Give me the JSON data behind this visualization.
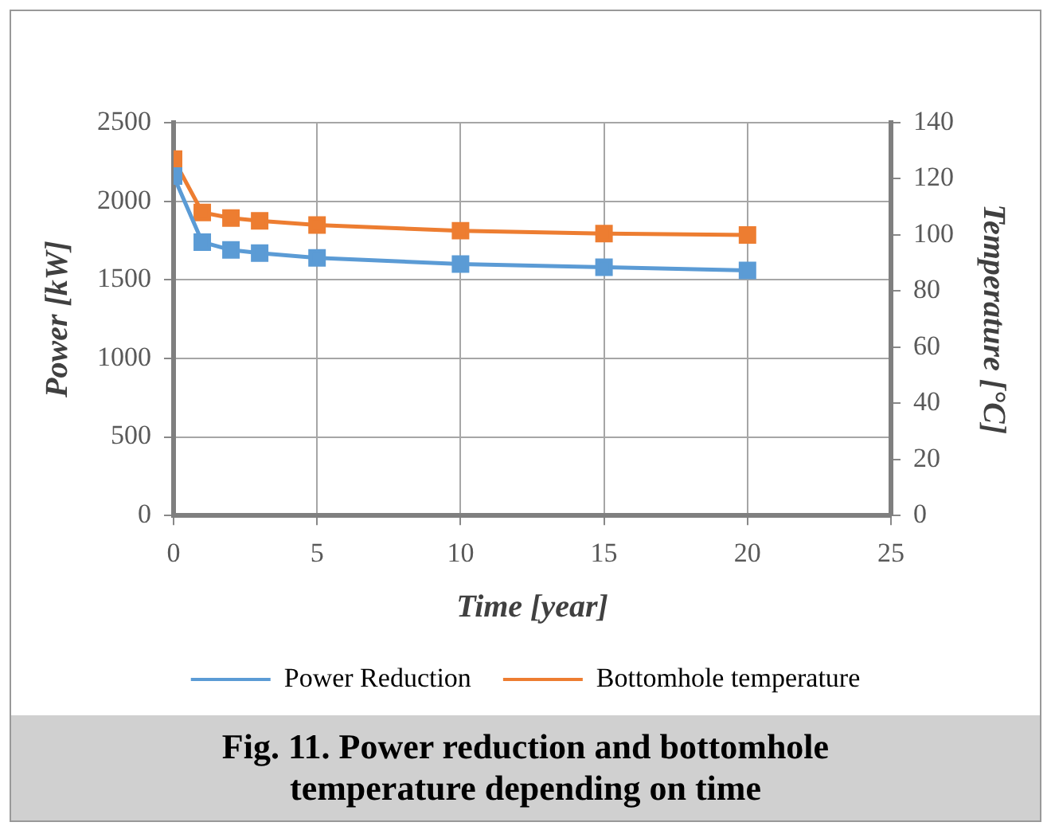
{
  "chart_data": {
    "type": "line",
    "title": "Fig. 11. Power reduction and bottomhole temperature depending on time",
    "xlabel": "Time [year]",
    "ylabel": "Power [kW]",
    "y2label": "Temperature [°C]",
    "x": [
      0,
      1,
      2,
      3,
      5,
      10,
      15,
      20
    ],
    "series": [
      {
        "name": "Power Reduction",
        "color": "#5b9bd5",
        "values": [
          2160,
          1740,
          1690,
          1670,
          1640,
          1600,
          1580,
          1560
        ]
      },
      {
        "name": "Bottomhole temperature",
        "color": "#ed7d31",
        "axis": "y2",
        "values": [
          127,
          108,
          106,
          105,
          103.5,
          101.5,
          100.5,
          100
        ]
      }
    ],
    "xlim": [
      0,
      25
    ],
    "xticks": [
      0,
      5,
      10,
      15,
      20,
      25
    ],
    "ylim": [
      0,
      2500
    ],
    "yticks": [
      0,
      500,
      1000,
      1500,
      2000,
      2500
    ],
    "y2lim": [
      0,
      140
    ],
    "y2ticks": [
      0,
      20,
      40,
      60,
      80,
      100,
      120,
      140
    ],
    "grid": true,
    "legend": "bottom",
    "marker": "square",
    "line_style": "solid"
  }
}
